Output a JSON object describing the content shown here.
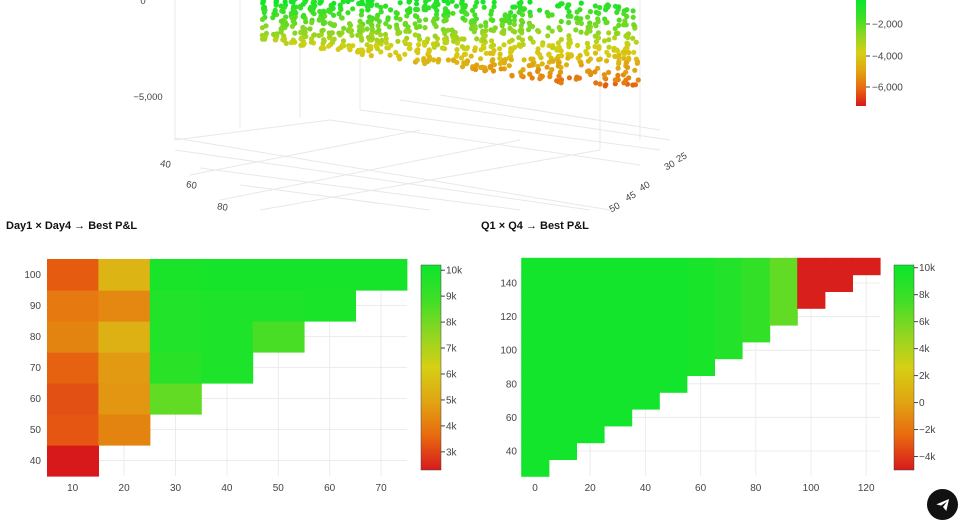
{
  "colors": {
    "scale": [
      "#d7191c",
      "#e8690f",
      "#e0a512",
      "#d6cf14",
      "#8ed622",
      "#3ddf26",
      "#0ae62c"
    ]
  },
  "icons": {
    "fab": "send-icon"
  },
  "chart_data": [
    {
      "type": "scatter3d",
      "title": "",
      "axes": {
        "z_ticks": [
          "0",
          "−5,000"
        ],
        "y_ticks": [
          "40",
          "60",
          "80"
        ],
        "x_ticks": [
          "25",
          "30",
          "40",
          "45",
          "50"
        ]
      },
      "colorbar": {
        "ticks": [
          "−2,000",
          "−4,000",
          "−6,000"
        ],
        "range": [
          -7000,
          0
        ]
      }
    },
    {
      "type": "heatmap",
      "title": "Day1 × Day4 → Best P&L",
      "x": [
        10,
        20,
        30,
        40,
        50,
        60,
        70
      ],
      "y": [
        40,
        50,
        60,
        70,
        80,
        90,
        100
      ],
      "xticks": [
        "10",
        "20",
        "30",
        "40",
        "50",
        "60",
        "70"
      ],
      "yticks": [
        "40",
        "50",
        "60",
        "70",
        "80",
        "90",
        "100"
      ],
      "z": [
        [
          2300,
          null,
          null,
          null,
          null,
          null,
          null
        ],
        [
          3300,
          4200,
          null,
          null,
          null,
          null,
          null
        ],
        [
          3200,
          4600,
          8300,
          null,
          null,
          null,
          null
        ],
        [
          3500,
          4700,
          9400,
          9700,
          null,
          null,
          null
        ],
        [
          4200,
          5300,
          9600,
          9700,
          8700,
          null,
          null
        ],
        [
          4000,
          4300,
          9600,
          9700,
          9700,
          9800,
          null
        ],
        [
          3400,
          5400,
          9800,
          9900,
          9900,
          9900,
          9900
        ]
      ],
      "colorbar": {
        "ticks": [
          "10k",
          "9k",
          "8k",
          "7k",
          "6k",
          "5k",
          "4k",
          "3k"
        ],
        "range": [
          2300,
          10200
        ]
      }
    },
    {
      "type": "heatmap",
      "title": "Q1 × Q4 → Best P&L",
      "x_edges": [
        -5,
        5,
        15,
        25,
        35,
        45,
        55,
        65,
        75,
        85,
        95,
        105,
        115,
        125
      ],
      "rows": [
        {
          "y0": 25,
          "y1": 35,
          "x_end": 5
        },
        {
          "y0": 35,
          "y1": 45,
          "x_end": 15
        },
        {
          "y0": 45,
          "y1": 55,
          "x_end": 25
        },
        {
          "y0": 55,
          "y1": 65,
          "x_end": 35
        },
        {
          "y0": 65,
          "y1": 75,
          "x_end": 45
        },
        {
          "y0": 75,
          "y1": 85,
          "x_end": 55
        },
        {
          "y0": 85,
          "y1": 95,
          "x_end": 65
        },
        {
          "y0": 95,
          "y1": 105,
          "x_end": 75
        },
        {
          "y0": 105,
          "y1": 115,
          "x_end": 85
        },
        {
          "y0": 115,
          "y1": 125,
          "x_end": 95
        },
        {
          "y0": 125,
          "y1": 135,
          "x_end": 105
        },
        {
          "y0": 135,
          "y1": 145,
          "x_end": 115
        },
        {
          "y0": 145,
          "y1": 155,
          "x_end": 125
        }
      ],
      "column_values": [
        9800,
        9800,
        9800,
        9800,
        9800,
        9800,
        9500,
        9000,
        8200,
        6500,
        -4800,
        -4800,
        -4800
      ],
      "xticks": [
        "0",
        "20",
        "40",
        "60",
        "80",
        "100",
        "120"
      ],
      "yticks": [
        "40",
        "60",
        "80",
        "100",
        "120",
        "140"
      ],
      "colorbar": {
        "ticks": [
          "10k",
          "8k",
          "6k",
          "4k",
          "2k",
          "0",
          "−2k",
          "−4k"
        ],
        "range": [
          -5000,
          10200
        ]
      }
    }
  ]
}
